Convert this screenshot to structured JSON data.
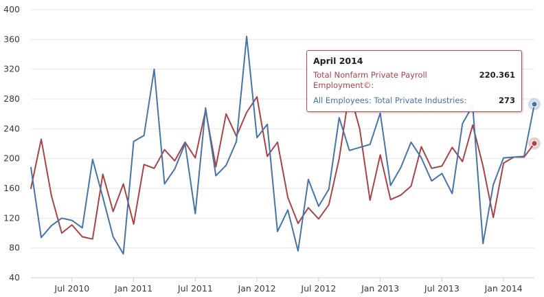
{
  "chart_data": {
    "type": "line",
    "title": "",
    "xlabel": "",
    "ylabel": "",
    "ylim": [
      40,
      400
    ],
    "y_ticks": [
      40,
      80,
      120,
      160,
      200,
      240,
      280,
      320,
      360,
      400
    ],
    "x_range": [
      "2010-03",
      "2014-04"
    ],
    "x_ticks": [
      "Jul 2010",
      "Jan 2011",
      "Jul 2011",
      "Jan 2012",
      "Jul 2012",
      "Jan 2013",
      "Jul 2013",
      "Jan 2014"
    ],
    "x_tick_months": [
      "2010-07",
      "2011-01",
      "2011-07",
      "2012-01",
      "2012-07",
      "2013-01",
      "2013-07",
      "2014-01"
    ],
    "grid": true,
    "months": [
      "2010-03",
      "2010-04",
      "2010-05",
      "2010-06",
      "2010-07",
      "2010-08",
      "2010-09",
      "2010-10",
      "2010-11",
      "2010-12",
      "2011-01",
      "2011-02",
      "2011-03",
      "2011-04",
      "2011-05",
      "2011-06",
      "2011-07",
      "2011-08",
      "2011-09",
      "2011-10",
      "2011-11",
      "2011-12",
      "2012-01",
      "2012-02",
      "2012-03",
      "2012-04",
      "2012-05",
      "2012-06",
      "2012-07",
      "2012-08",
      "2012-09",
      "2012-10",
      "2012-11",
      "2012-12",
      "2013-01",
      "2013-02",
      "2013-03",
      "2013-04",
      "2013-05",
      "2013-06",
      "2013-07",
      "2013-08",
      "2013-09",
      "2013-10",
      "2013-11",
      "2013-12",
      "2014-01",
      "2014-02",
      "2014-03",
      "2014-04"
    ],
    "series": [
      {
        "name": "Total Nonfarm Private Payroll Employment©",
        "color": "#a94245",
        "values": [
          160,
          226,
          150,
          100,
          111,
          95,
          92,
          179,
          129,
          166,
          112,
          192,
          187,
          212,
          197,
          222,
          201,
          265,
          189,
          260,
          230,
          262,
          283,
          203,
          222,
          148,
          113,
          134,
          119,
          138,
          200,
          290,
          240,
          144,
          205,
          145,
          151,
          163,
          216,
          187,
          190,
          215,
          196,
          245,
          190,
          121,
          194,
          202,
          202,
          220.361
        ]
      },
      {
        "name": "All Employees: Total Private Industries",
        "color": "#4572a7",
        "values": [
          188,
          94,
          110,
          120,
          117,
          107,
          199,
          148,
          95,
          72,
          223,
          231,
          320,
          166,
          186,
          220,
          126,
          268,
          177,
          191,
          223,
          364,
          228,
          246,
          102,
          131,
          76,
          172,
          136,
          159,
          255,
          211,
          215,
          219,
          261,
          164,
          188,
          222,
          201,
          170,
          180,
          153,
          247,
          271,
          86,
          165,
          201,
          202,
          203,
          273
        ]
      }
    ]
  },
  "tooltip": {
    "title": "April 2014",
    "rows": [
      {
        "label": "Total Nonfarm Private Payroll Employment©:",
        "value": "220.361",
        "color": "#a94245"
      },
      {
        "label": "All Employees: Total Private Industries:",
        "value": "273",
        "color": "#4572a7"
      }
    ]
  },
  "colors": {
    "grid": "#e6e6e6",
    "axis": "#c0d0e0",
    "highlight_red": "#a94245",
    "highlight_blue": "#4572a7"
  }
}
